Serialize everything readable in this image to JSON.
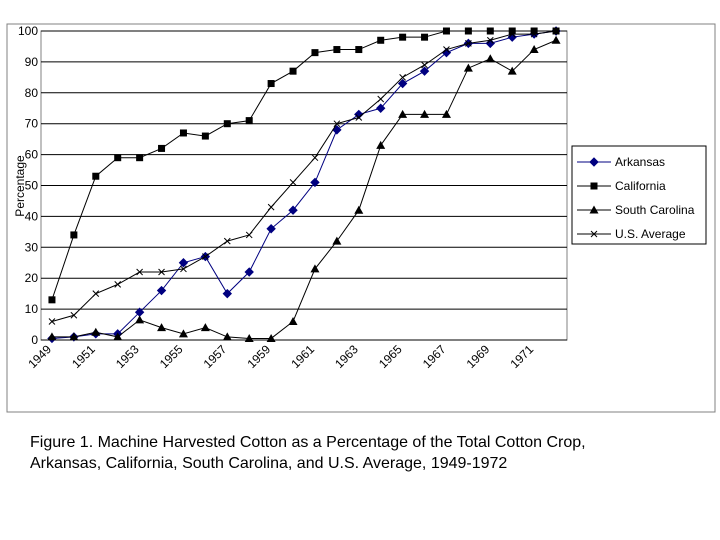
{
  "caption": {
    "line1": "Figure 1. Machine Harvested Cotton as a Percentage of the Total Cotton Crop,",
    "line2": "Arkansas, California, South Carolina, and U.S. Average, 1949-1972"
  },
  "chart_data": {
    "type": "line",
    "title": "",
    "xlabel": "",
    "ylabel": "Percentage",
    "ylim": [
      0,
      100
    ],
    "yticks": [
      0,
      10,
      20,
      30,
      40,
      50,
      60,
      70,
      80,
      90,
      100
    ],
    "xticks": [
      "1949",
      "1951",
      "1953",
      "1955",
      "1957",
      "1959",
      "1961",
      "1963",
      "1965",
      "1967",
      "1969",
      "1971"
    ],
    "x": [
      1949,
      1950,
      1951,
      1952,
      1953,
      1954,
      1955,
      1956,
      1957,
      1958,
      1959,
      1960,
      1961,
      1962,
      1963,
      1964,
      1965,
      1966,
      1967,
      1968,
      1969,
      1970,
      1971,
      1972
    ],
    "grid": "horizontal",
    "legend_position": "right",
    "series": [
      {
        "name": "Arkansas",
        "marker": "diamond",
        "values": [
          0.5,
          1,
          2,
          2,
          9,
          16,
          25,
          27,
          15,
          22,
          36,
          42,
          51,
          68,
          73,
          75,
          83,
          87,
          93,
          96,
          96,
          98,
          99,
          100
        ]
      },
      {
        "name": "California",
        "marker": "square",
        "values": [
          13,
          34,
          53,
          59,
          59,
          62,
          67,
          66,
          70,
          71,
          83,
          87,
          93,
          94,
          94,
          97,
          98,
          98,
          100,
          100,
          100,
          100,
          100,
          100
        ]
      },
      {
        "name": "South Carolina",
        "marker": "triangle",
        "values": [
          1,
          1,
          2.5,
          1,
          6.5,
          4,
          2,
          4,
          1,
          0.5,
          0.5,
          6,
          23,
          32,
          42,
          63,
          73,
          73,
          73,
          88,
          91,
          87,
          94,
          97
        ]
      },
      {
        "name": "U.S. Average",
        "marker": "x",
        "values": [
          6,
          8,
          15,
          18,
          22,
          22,
          23,
          27,
          32,
          34,
          43,
          51,
          59,
          70,
          72,
          78,
          85,
          89,
          94,
          96,
          97,
          99,
          99,
          100
        ]
      }
    ]
  }
}
